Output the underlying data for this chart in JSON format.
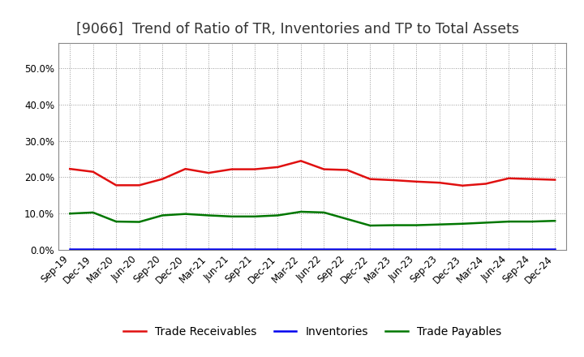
{
  "title": "[9066]  Trend of Ratio of TR, Inventories and TP to Total Assets",
  "x_labels": [
    "Sep-19",
    "Dec-19",
    "Mar-20",
    "Jun-20",
    "Sep-20",
    "Dec-20",
    "Mar-21",
    "Jun-21",
    "Sep-21",
    "Dec-21",
    "Mar-22",
    "Jun-22",
    "Sep-22",
    "Dec-22",
    "Mar-23",
    "Jun-23",
    "Sep-23",
    "Dec-23",
    "Mar-24",
    "Jun-24",
    "Sep-24",
    "Dec-24"
  ],
  "trade_receivables": [
    0.223,
    0.215,
    0.178,
    0.178,
    0.195,
    0.223,
    0.212,
    0.222,
    0.222,
    0.228,
    0.245,
    0.222,
    0.22,
    0.195,
    0.192,
    0.188,
    0.185,
    0.177,
    0.182,
    0.197,
    0.195,
    0.193
  ],
  "inventories": [
    0.002,
    0.002,
    0.002,
    0.002,
    0.002,
    0.002,
    0.002,
    0.002,
    0.002,
    0.002,
    0.002,
    0.002,
    0.002,
    0.002,
    0.002,
    0.002,
    0.002,
    0.002,
    0.002,
    0.002,
    0.002,
    0.002
  ],
  "trade_payables": [
    0.1,
    0.103,
    0.078,
    0.077,
    0.095,
    0.099,
    0.095,
    0.092,
    0.092,
    0.095,
    0.105,
    0.103,
    0.085,
    0.067,
    0.068,
    0.068,
    0.07,
    0.072,
    0.075,
    0.078,
    0.078,
    0.08
  ],
  "tr_color": "#e01010",
  "inv_color": "#0000ee",
  "tp_color": "#007700",
  "background_color": "#ffffff",
  "plot_bg_color": "#ffffff",
  "grid_color": "#999999",
  "title_color": "#333333",
  "ylim": [
    0.0,
    0.57
  ],
  "yticks": [
    0.0,
    0.1,
    0.2,
    0.3,
    0.4,
    0.5
  ],
  "title_fontsize": 12.5,
  "legend_fontsize": 10,
  "tick_labelsize": 8.5
}
